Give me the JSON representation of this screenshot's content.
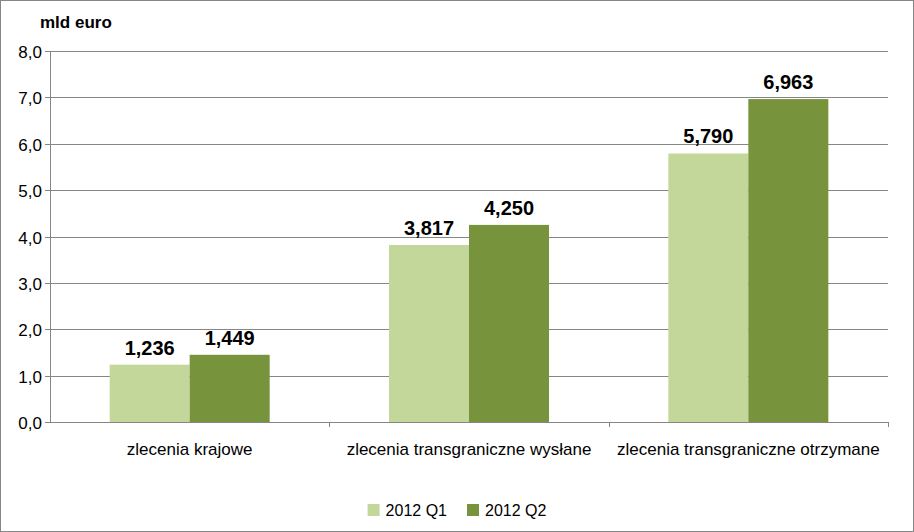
{
  "chart_data": {
    "type": "bar",
    "y_label": "mld euro",
    "categories": [
      "zlecenia krajowe",
      "zlecenia transgraniczne wysłane",
      "zlecenia transgraniczne otrzymane"
    ],
    "series": [
      {
        "name": "2012 Q1",
        "color": "#c4d79b",
        "values": [
          1.236,
          3.817,
          5.79
        ],
        "value_labels": [
          "1,236",
          "3,817",
          "5,790"
        ]
      },
      {
        "name": "2012 Q2",
        "color": "#77933c",
        "values": [
          1.449,
          4.25,
          6.963
        ],
        "value_labels": [
          "1,449",
          "4,250",
          "6,963"
        ]
      }
    ],
    "ylim": [
      0,
      8
    ],
    "yticks": [
      {
        "value": 0,
        "label": "0,0"
      },
      {
        "value": 1,
        "label": "1,0"
      },
      {
        "value": 2,
        "label": "2,0"
      },
      {
        "value": 3,
        "label": "3,0"
      },
      {
        "value": 4,
        "label": "4,0"
      },
      {
        "value": 5,
        "label": "5,0"
      },
      {
        "value": 6,
        "label": "6,0"
      },
      {
        "value": 7,
        "label": "7,0"
      },
      {
        "value": 8,
        "label": "8,0"
      }
    ],
    "grid": true,
    "data_labels": true,
    "legend": "bottom"
  }
}
